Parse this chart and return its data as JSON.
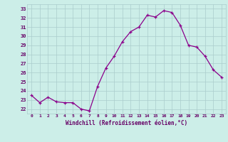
{
  "x": [
    0,
    1,
    2,
    3,
    4,
    5,
    6,
    7,
    8,
    9,
    10,
    11,
    12,
    13,
    14,
    15,
    16,
    17,
    18,
    19,
    20,
    21,
    22,
    23
  ],
  "y": [
    23.5,
    22.7,
    23.3,
    22.8,
    22.7,
    22.7,
    22.0,
    21.8,
    24.5,
    26.5,
    27.8,
    29.4,
    30.5,
    31.0,
    32.3,
    32.1,
    32.8,
    32.6,
    31.2,
    29.0,
    28.8,
    27.8,
    26.3,
    25.5
  ],
  "line_color": "#8B008B",
  "marker": "+",
  "bg_color": "#cceee8",
  "grid_color": "#aacccc",
  "xlabel": "Windchill (Refroidissement éolien,°C)",
  "ylabel_ticks": [
    22,
    23,
    24,
    25,
    26,
    27,
    28,
    29,
    30,
    31,
    32,
    33
  ],
  "ylim": [
    21.5,
    33.5
  ],
  "xlim": [
    -0.5,
    23.5
  ],
  "xtick_labels": [
    "0",
    "1",
    "2",
    "3",
    "4",
    "5",
    "6",
    "7",
    "8",
    "9",
    "10",
    "11",
    "12",
    "13",
    "14",
    "15",
    "16",
    "17",
    "18",
    "19",
    "20",
    "21",
    "22",
    "23"
  ],
  "font_color": "#660066"
}
